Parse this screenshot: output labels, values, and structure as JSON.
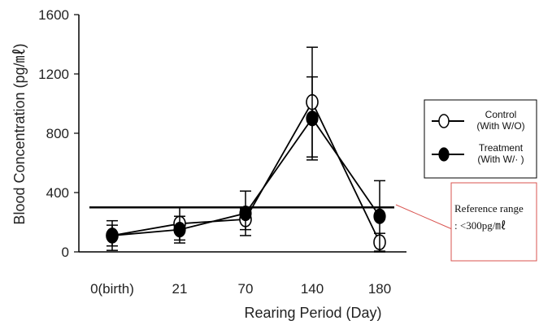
{
  "chart_data": {
    "type": "line",
    "xlabel": "Rearing Period (Day)",
    "ylabel": "Blood Concentration (pg/㎖)",
    "categories": [
      "0(birth)",
      "21",
      "70",
      "140",
      "180"
    ],
    "y_ticks": [
      "0",
      "400",
      "800",
      "1200",
      "1600"
    ],
    "ylim": [
      0,
      1600
    ],
    "series": [
      {
        "name": "Control\n(With W/O)",
        "legend_lines": [
          "Control",
          "(With W/O)"
        ],
        "marker": "open-circle",
        "values": [
          110,
          190,
          220,
          1010,
          65
        ],
        "errors": [
          70,
          110,
          70,
          370,
          60
        ]
      },
      {
        "name": "Treatment\n(With W/·)",
        "legend_lines": [
          "Treatment",
          "(With W/· )"
        ],
        "marker": "filled-circle",
        "values": [
          110,
          150,
          260,
          900,
          240
        ],
        "errors": [
          100,
          90,
          150,
          280,
          240
        ]
      }
    ],
    "reference_line": {
      "value": 300
    },
    "annotation": {
      "lines": [
        "Reference range",
        ": <300pg/㎖"
      ]
    },
    "colors": {
      "line": "#000000",
      "annotation_border": "#d9534f",
      "pointer": "#d9534f"
    },
    "grid": false,
    "legend_position": "right"
  }
}
